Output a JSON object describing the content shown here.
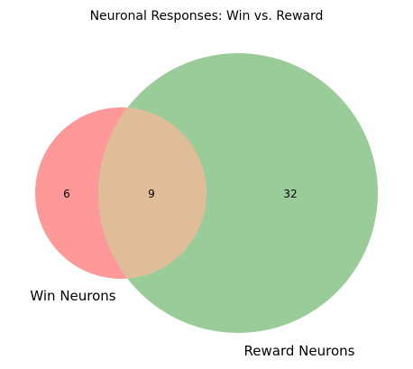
{
  "title": "Neuronal Responses: Win vs. Reward",
  "sets": {
    "win": {
      "label": "Win Neurons",
      "only_count": "6",
      "color": "#ff9999"
    },
    "reward": {
      "label": "Reward Neurons",
      "only_count": "32",
      "color": "#99cc99"
    }
  },
  "intersection": {
    "count": "9",
    "color": "#e0bd99"
  }
}
